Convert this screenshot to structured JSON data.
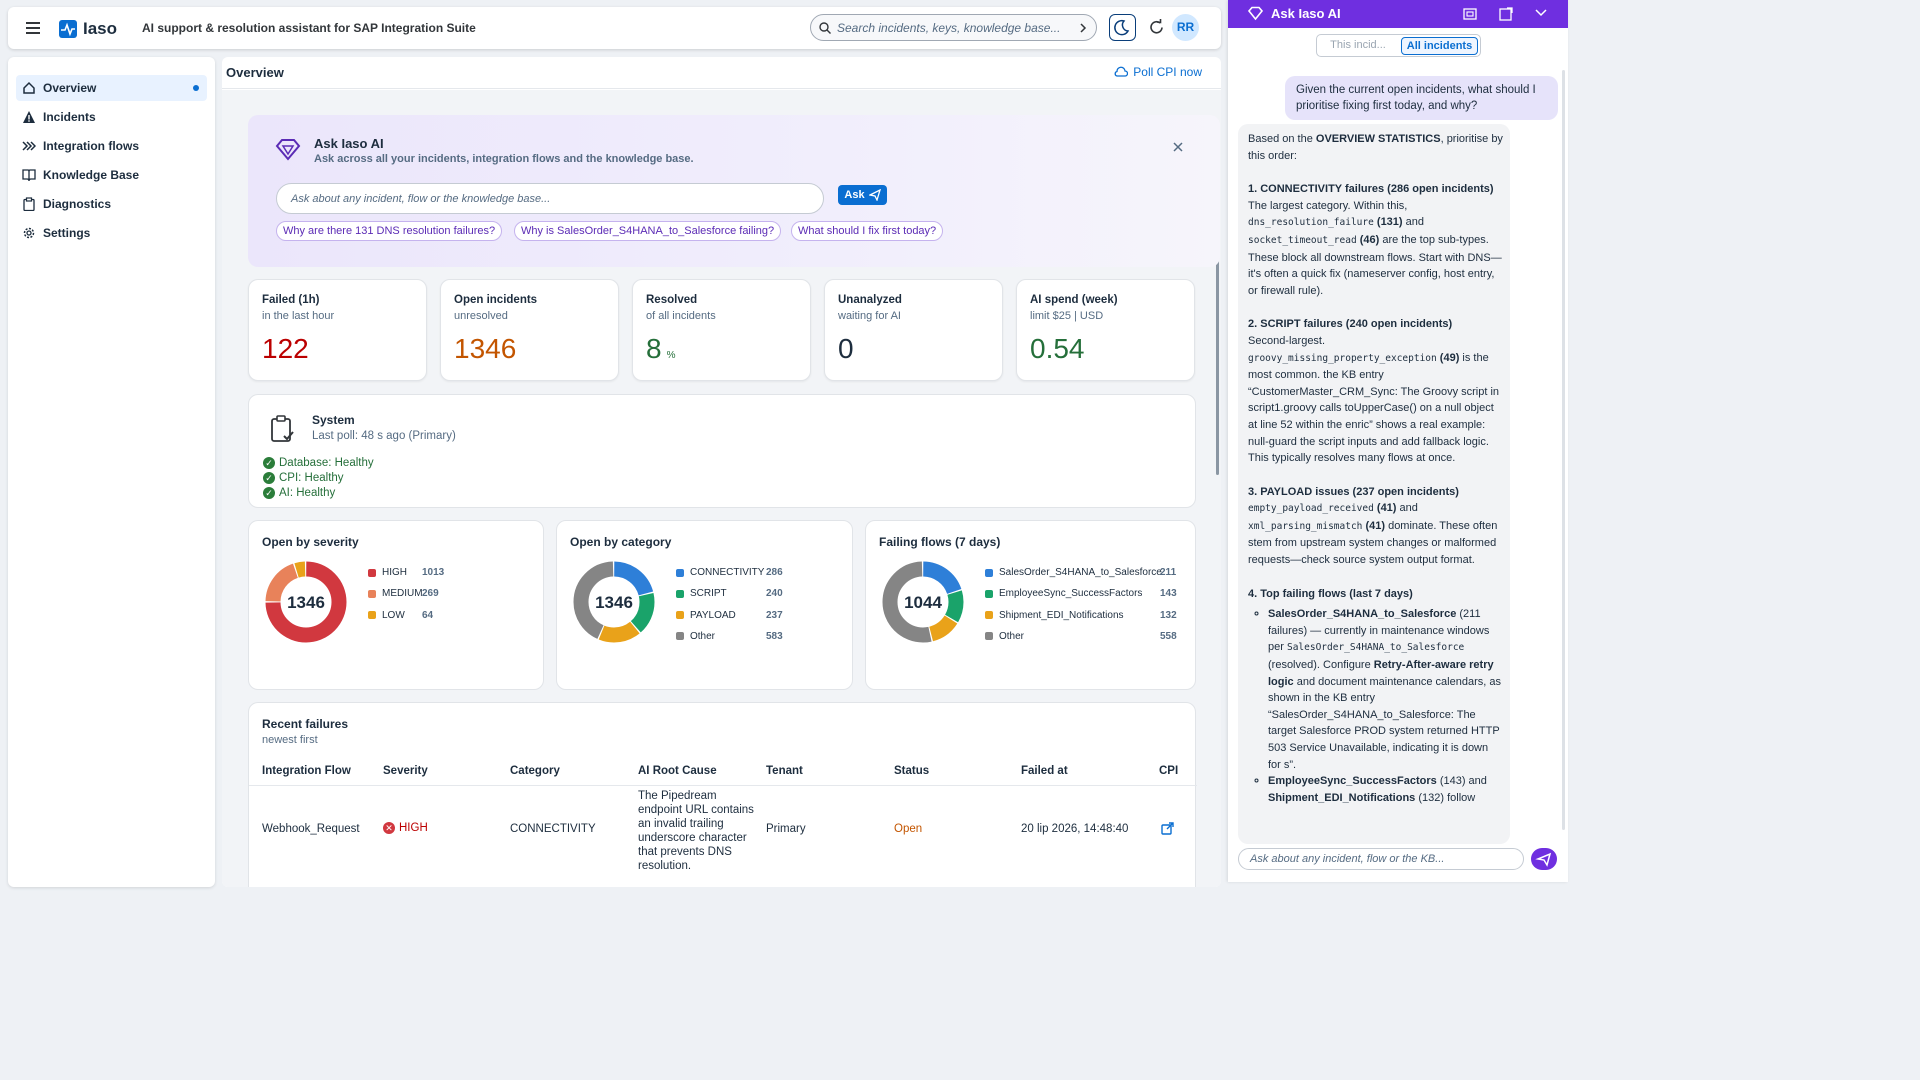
{
  "header": {
    "app_name": "Iaso",
    "tagline": "AI support & resolution assistant for SAP Integration Suite",
    "search_placeholder": "Search incidents, keys, knowledge base...",
    "avatar_initials": "RR"
  },
  "sidebar": {
    "items": [
      {
        "label": "Overview",
        "icon": "home-icon",
        "active": true
      },
      {
        "label": "Incidents",
        "icon": "warning-icon"
      },
      {
        "label": "Integration flows",
        "icon": "flows-icon"
      },
      {
        "label": "Knowledge Base",
        "icon": "book-icon"
      },
      {
        "label": "Diagnostics",
        "icon": "clipboard-icon"
      },
      {
        "label": "Settings",
        "icon": "gear-icon"
      }
    ]
  },
  "main": {
    "title": "Overview",
    "poll_label": "Poll CPI now",
    "ask": {
      "title": "Ask Iaso AI",
      "subtitle": "Ask across all your incidents, integration flows and the knowledge base.",
      "placeholder": "Ask about any incident, flow or the knowledge base...",
      "button": "Ask",
      "chips": [
        "Why are there 131 DNS resolution failures?",
        "Why is SalesOrder_S4HANA_to_Salesforce failing?",
        "What should I fix first today?"
      ]
    },
    "kpis": [
      {
        "title": "Failed (1h)",
        "sub": "in the last hour",
        "value": "122",
        "unit": "",
        "color": "#bb0000"
      },
      {
        "title": "Open incidents",
        "sub": "unresolved",
        "value": "1346",
        "unit": "",
        "color": "#c35500"
      },
      {
        "title": "Resolved",
        "sub": "of all incidents",
        "value": "8",
        "unit": "%",
        "color": "#256f3a"
      },
      {
        "title": "Unanalyzed",
        "sub": "waiting for AI",
        "value": "0",
        "unit": "",
        "color": "#1d2d3e"
      },
      {
        "title": "AI spend (week)",
        "sub": "limit $25 | USD",
        "value": "0.54",
        "unit": "",
        "color": "#256f3a"
      }
    ],
    "system": {
      "title": "System",
      "last_poll": "Last poll: 48 s ago (Primary)",
      "checks": [
        "Database: Healthy",
        "CPI: Healthy",
        "AI: Healthy"
      ]
    },
    "donuts": [
      {
        "title": "Open by severity",
        "total": "1346",
        "items": [
          {
            "label": "HIGH",
            "value": 1013,
            "color": "#d1383f"
          },
          {
            "label": "MEDIUM",
            "value": 269,
            "color": "#e8825a"
          },
          {
            "label": "LOW",
            "value": 64,
            "color": "#e9a21a"
          }
        ]
      },
      {
        "title": "Open by category",
        "total": "1346",
        "items": [
          {
            "label": "CONNECTIVITY",
            "value": 286,
            "color": "#2e7fd8"
          },
          {
            "label": "SCRIPT",
            "value": 240,
            "color": "#1aa36a"
          },
          {
            "label": "PAYLOAD",
            "value": 237,
            "color": "#e9a21a"
          },
          {
            "label": "Other",
            "value": 583,
            "color": "#858585"
          }
        ]
      },
      {
        "title": "Failing flows (7 days)",
        "total": "1044",
        "items": [
          {
            "label": "SalesOrder_S4HANA_to_Salesforce",
            "value": 211,
            "color": "#2e7fd8"
          },
          {
            "label": "EmployeeSync_SuccessFactors",
            "value": 143,
            "color": "#1aa36a"
          },
          {
            "label": "Shipment_EDI_Notifications",
            "value": 132,
            "color": "#e9a21a"
          },
          {
            "label": "Other",
            "value": 558,
            "color": "#858585"
          }
        ]
      }
    ],
    "recent": {
      "title": "Recent failures",
      "sub": "newest first",
      "columns": [
        "Integration Flow",
        "Severity",
        "Category",
        "AI Root Cause",
        "Tenant",
        "Status",
        "Failed at",
        "CPI"
      ],
      "rows": [
        {
          "flow": "Webhook_Request",
          "severity": "HIGH",
          "category": "CONNECTIVITY",
          "cause": "The Pipedream endpoint URL contains an invalid trailing underscore character that prevents DNS resolution.",
          "tenant": "Primary",
          "status": "Open",
          "failed_at": "20 lip 2026, 14:48:40"
        }
      ]
    }
  },
  "ai_panel": {
    "title": "Ask Iaso AI",
    "tabs": [
      "This incid...",
      "All incidents"
    ],
    "active_tab": 1,
    "user_message": "Given the current open incidents, what should I prioritise fixing first today, and why?",
    "input_placeholder": "Ask about any incident, flow or the KB...",
    "answer": {
      "intro_a": "Based on the ",
      "intro_b": "OVERVIEW STATISTICS",
      "intro_c": ", prioritise by this order:",
      "s1_title": "1. CONNECTIVITY failures (286 open incidents)",
      "s1_a": "The largest category. Within this, ",
      "s1_code1": "dns_resolution_failure",
      "s1_n1": " (131)",
      "s1_b": " and ",
      "s1_code2": "socket_timeout_read",
      "s1_n2": " (46)",
      "s1_c": " are the top sub-types. These block all downstream flows. Start with DNS—it's often a quick fix (nameserver config, host entry, or firewall rule).",
      "s2_title": "2. SCRIPT failures (240 open incidents)",
      "s2_a": "Second-largest. ",
      "s2_code": "groovy_missing_property_exception",
      "s2_n": " (49)",
      "s2_b": " is the most common. the KB entry “CustomerMaster_CRM_Sync: The Groovy script in script1.groovy calls toUpperCase() on a null object at line 52 within the enric” shows a real example: null-guard the script inputs and add fallback logic. This typically resolves many flows at once.",
      "s3_title": "3. PAYLOAD issues (237 open incidents)",
      "s3_code1": "empty_payload_received",
      "s3_n1": " (41)",
      "s3_b": " and ",
      "s3_code2": "xml_parsing_mismatch",
      "s3_n2": " (41)",
      "s3_c": " dominate. These often stem from upstream system changes or malformed requests—check source system output format.",
      "s4_title": "4. Top failing flows (last 7 days)",
      "s4_b1_name": "SalesOrder_S4HANA_to_Salesforce",
      "s4_b1_a": " (211 failures) — currently in maintenance windows per ",
      "s4_b1_code": "SalesOrder_S4HANA_to_Salesforce",
      "s4_b1_b": " (resolved). Configure ",
      "s4_b1_strong": "Retry-After-aware retry logic",
      "s4_b1_c": " and document maintenance calendars, as shown in the KB entry “SalesOrder_S4HANA_to_Salesforce: The target Salesforce PROD system returned HTTP 503 Service Unavailable, indicating it is down for s”.",
      "s4_b2_name": "EmployeeSync_SuccessFactors",
      "s4_b2_a": " (143) and ",
      "s4_b2_name2": "Shipment_EDI_Notifications",
      "s4_b2_b": " (132) follow"
    }
  }
}
